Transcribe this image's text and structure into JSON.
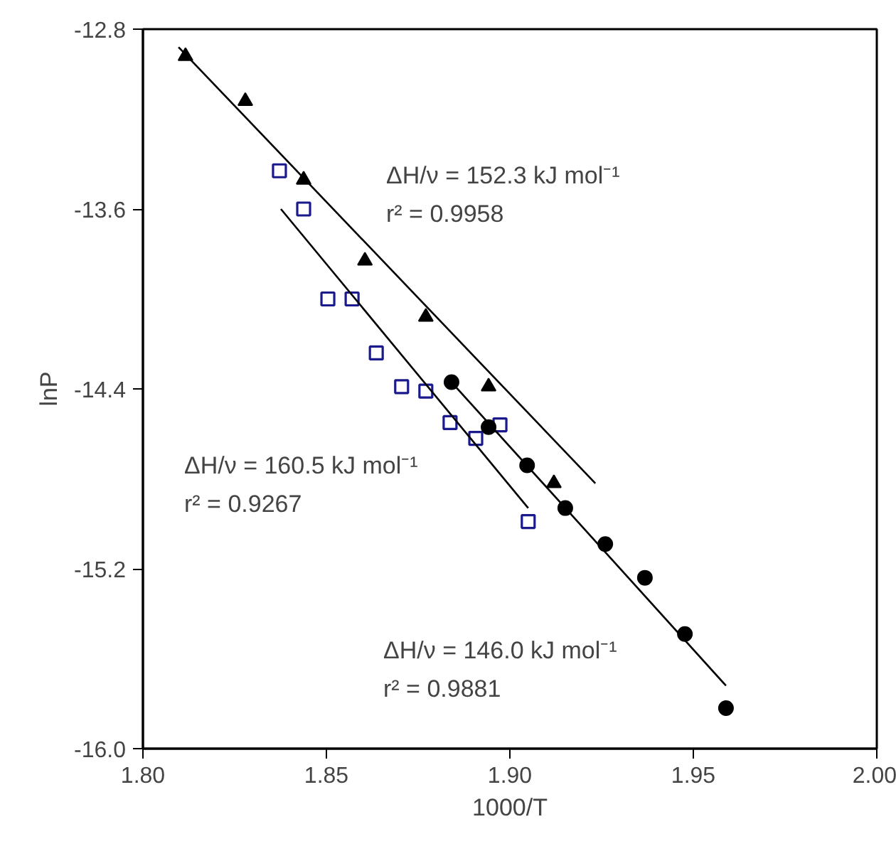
{
  "chart_data": {
    "type": "scatter",
    "xlabel": "1000/T",
    "ylabel": "lnP",
    "xlim": [
      1.8,
      2.0
    ],
    "ylim": [
      -16.0,
      -12.8
    ],
    "xticks": [
      {
        "value": 1.8,
        "label": "1.80"
      },
      {
        "value": 1.85,
        "label": "1.85"
      },
      {
        "value": 1.9,
        "label": "1.90"
      },
      {
        "value": 1.95,
        "label": "1.95"
      },
      {
        "value": 2.0,
        "label": "2.00"
      }
    ],
    "yticks": [
      {
        "value": -16.0,
        "label": "-16.0"
      },
      {
        "value": -15.2,
        "label": "-15.2"
      },
      {
        "value": -14.4,
        "label": "-14.4"
      },
      {
        "value": -13.6,
        "label": "-13.6"
      },
      {
        "value": -12.8,
        "label": "-12.8"
      }
    ],
    "grid": false,
    "series": [
      {
        "marker": "triangle",
        "color": "#000000",
        "x": [
          1.8116,
          1.8279,
          1.8438,
          1.8605,
          1.8771,
          1.8942,
          1.912
        ],
        "values": [
          -12.92,
          -13.12,
          -13.47,
          -13.83,
          -14.08,
          -14.39,
          -14.82
        ]
      },
      {
        "marker": "square",
        "color": "#1a1a8c",
        "x": [
          1.8372,
          1.8438,
          1.8504,
          1.857,
          1.8636,
          1.8705,
          1.8771,
          1.8837,
          1.8907,
          1.8973,
          1.905
        ],
        "values": [
          -13.43,
          -13.6,
          -14.0,
          -14.0,
          -14.24,
          -14.39,
          -14.41,
          -14.55,
          -14.62,
          -14.56,
          -14.99
        ]
      },
      {
        "marker": "circle",
        "color": "#000000",
        "x": [
          1.8841,
          1.8942,
          1.9047,
          1.9151,
          1.926,
          1.9368,
          1.9477,
          1.9589
        ],
        "values": [
          -14.37,
          -14.57,
          -14.74,
          -14.93,
          -15.09,
          -15.24,
          -15.49,
          -15.82
        ]
      },
      {
        "type": "line",
        "color": "#000000",
        "x": [
          1.8097,
          1.9233
        ],
        "values": [
          -12.88,
          -14.82
        ]
      },
      {
        "type": "line",
        "color": "#000000",
        "x": [
          1.8376,
          1.905
        ],
        "values": [
          -13.6,
          -14.93
        ]
      },
      {
        "type": "line",
        "color": "#000000",
        "x": [
          1.8841,
          1.9589
        ],
        "values": [
          -14.37,
          -15.72
        ]
      }
    ],
    "annotations": [
      "ΔH/ν = 152.3 kJ mol⁻¹",
      "r² = 0.9958",
      "ΔH/ν = 160.5 kJ mol⁻¹",
      "r² = 0.9267",
      "ΔH/ν = 146.0 kJ mol⁻¹",
      "r² = 0.9881"
    ]
  }
}
